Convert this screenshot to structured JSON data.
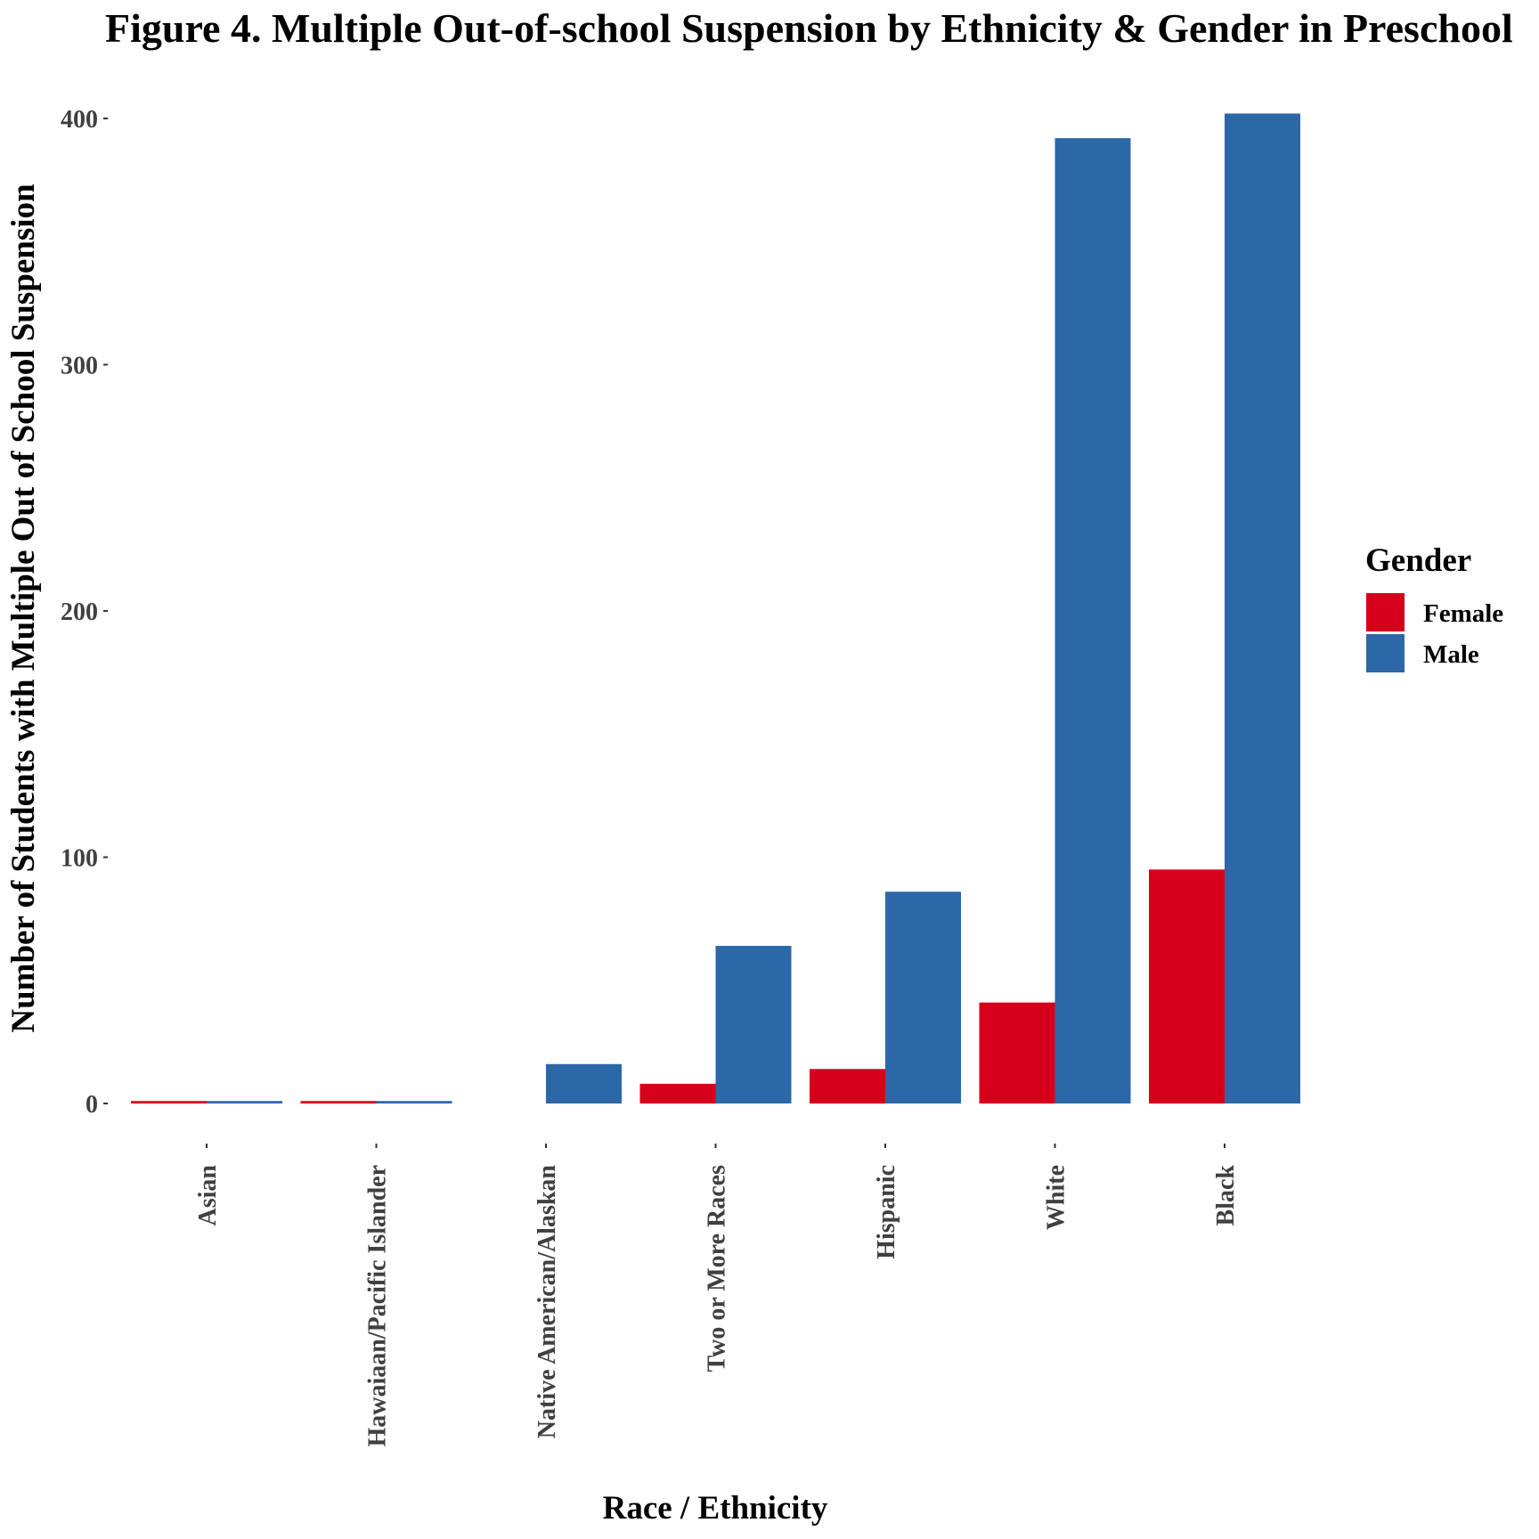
{
  "chart_data": {
    "type": "bar",
    "title": "Figure 4. Multiple Out-of-school Suspension by Ethnicity & Gender in Preschool",
    "xlabel": "Race / Ethnicity",
    "ylabel": "Number of Students with Multiple Out of School Suspension",
    "ylim": [
      0,
      400
    ],
    "yticks": [
      0,
      100,
      200,
      300,
      400
    ],
    "grid": false,
    "legend": {
      "title": "Gender",
      "position": "right"
    },
    "categories": [
      "Asian",
      "Hawaiaan/Pacific Islander",
      "Native American/Alaskan",
      "Two or More Races",
      "Hispanic",
      "White",
      "Black"
    ],
    "series": [
      {
        "name": "Female",
        "color": "#d7001b",
        "values": [
          1,
          1,
          0,
          8,
          14,
          41,
          95
        ]
      },
      {
        "name": "Male",
        "color": "#2c68a8",
        "values": [
          1,
          1,
          16,
          64,
          86,
          392,
          402
        ]
      }
    ]
  }
}
